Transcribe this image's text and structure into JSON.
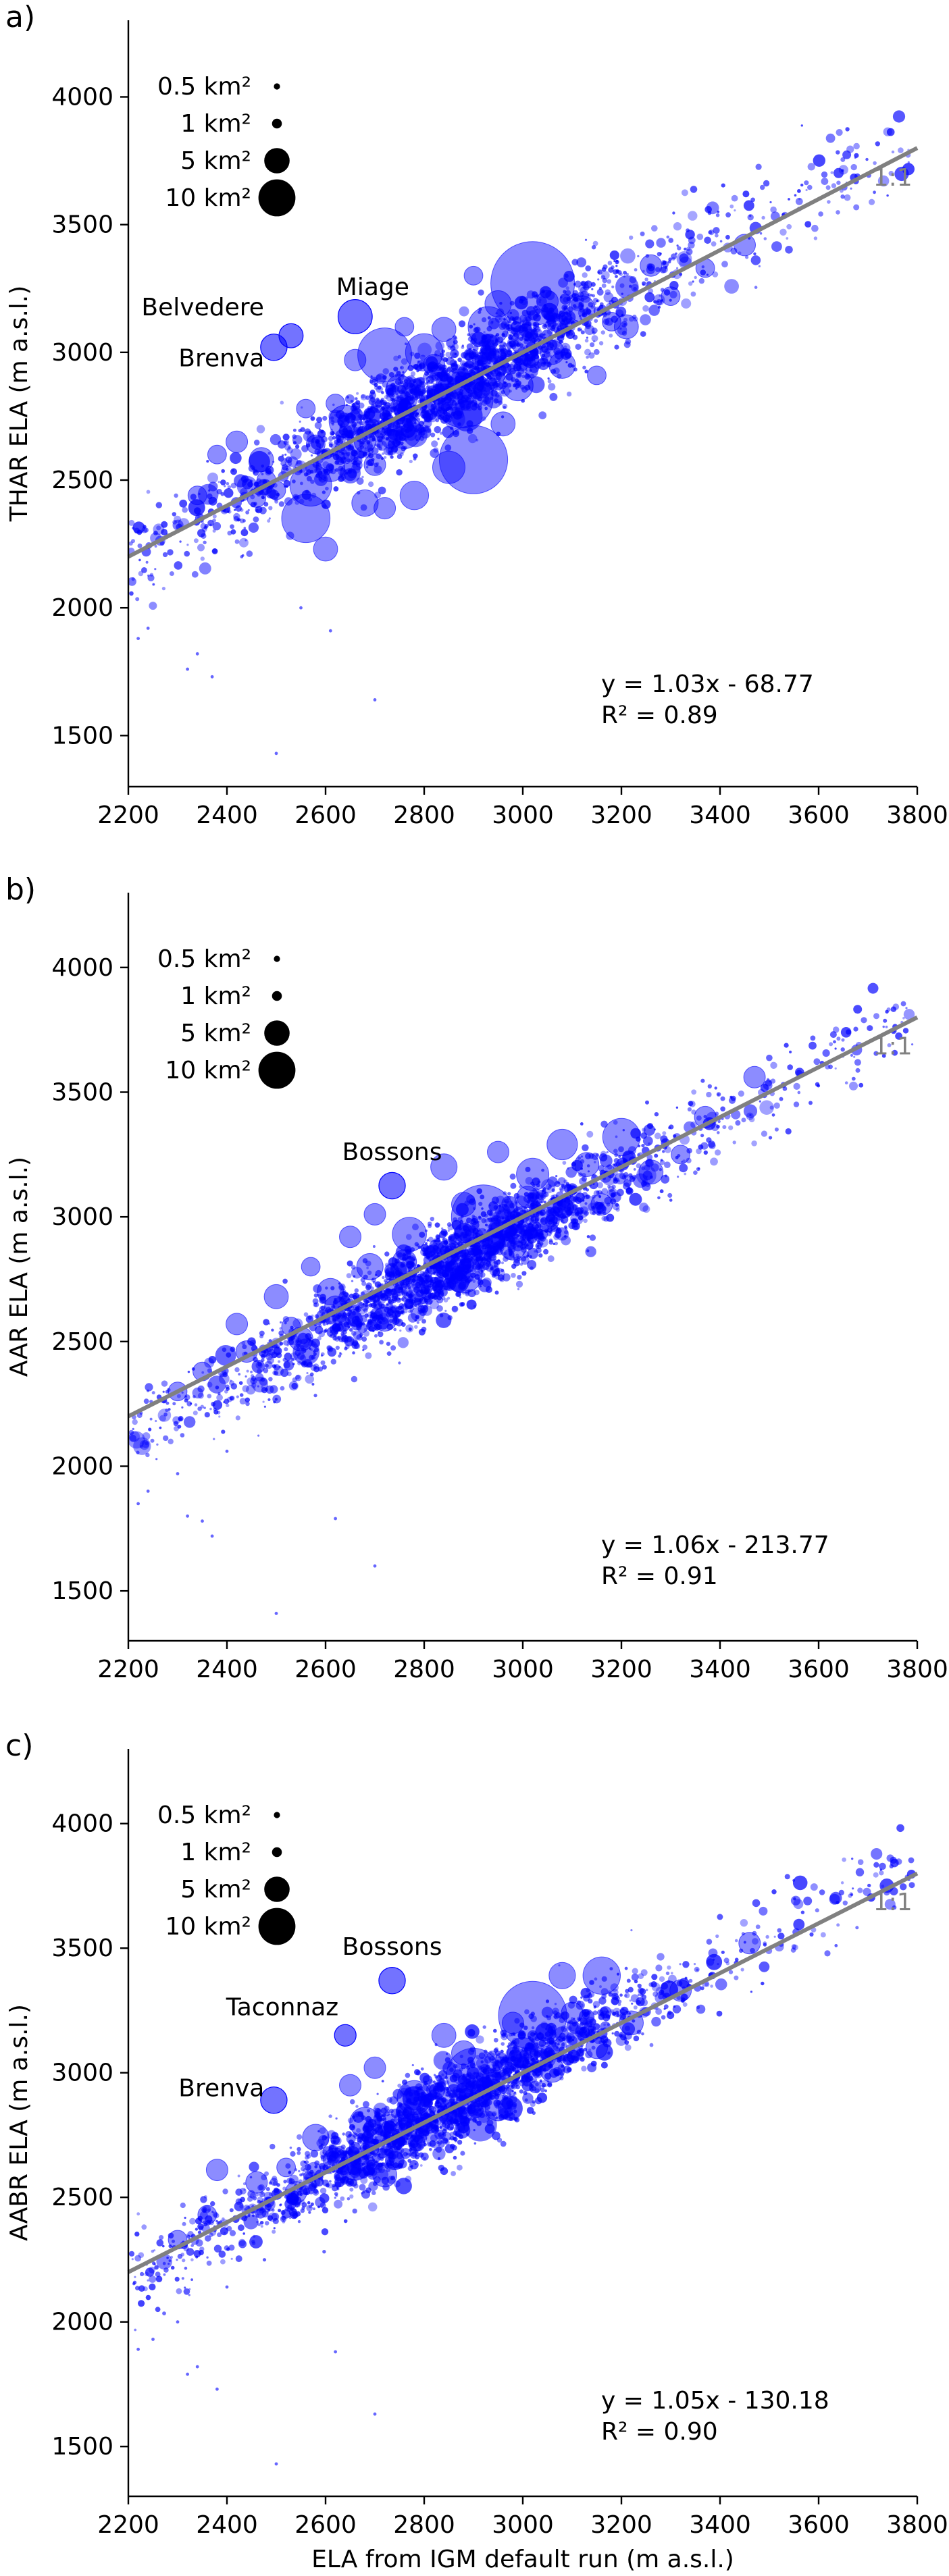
{
  "colors": {
    "points": "#0000ff",
    "one_to_one": "#808080",
    "axis": "#000000"
  },
  "chart_data": [
    {
      "type": "scatter",
      "panel_label": "a)",
      "xlabel": "",
      "ylabel": "THAR ELA (m a.s.l.)",
      "xlim": [
        2200,
        3800
      ],
      "ylim": [
        1300,
        4300
      ],
      "xticks": [
        "2200",
        "2400",
        "2600",
        "2800",
        "3000",
        "3200",
        "3400",
        "3600",
        "3800"
      ],
      "yticks": [
        "1500",
        "2000",
        "2500",
        "3000",
        "3500",
        "4000"
      ],
      "one_to_one_label": "1:1",
      "equation": "y = 1.03x - 68.77",
      "r2": "R² = 0.89",
      "legend": [
        {
          "label": "0.5 km²",
          "area_km2": 0.5
        },
        {
          "label": "1 km²",
          "area_km2": 1
        },
        {
          "label": "5 km²",
          "area_km2": 5
        },
        {
          "label": "10 km²",
          "area_km2": 10
        }
      ],
      "named_glaciers": [
        {
          "name": "Miage",
          "x": 2660,
          "y": 3140,
          "area_km2": 10
        },
        {
          "name": "Belvedere",
          "x": 2530,
          "y": 3065,
          "area_km2": 5
        },
        {
          "name": "Brenva",
          "x": 2495,
          "y": 3020,
          "area_km2": 6
        }
      ],
      "points": [
        [
          3020,
          3270,
          60
        ],
        [
          2900,
          2580,
          40
        ],
        [
          2880,
          2820,
          30
        ],
        [
          2720,
          2990,
          25
        ],
        [
          2560,
          2350,
          20
        ],
        [
          2570,
          2480,
          15
        ],
        [
          2800,
          3000,
          12
        ],
        [
          2760,
          2690,
          10
        ],
        [
          2930,
          3100,
          14
        ],
        [
          2640,
          2730,
          9
        ],
        [
          2990,
          2870,
          8
        ],
        [
          3120,
          3170,
          6
        ],
        [
          2610,
          2550,
          7
        ],
        [
          3210,
          3100,
          5
        ],
        [
          2850,
          2550,
          9
        ],
        [
          2680,
          2410,
          6
        ],
        [
          2470,
          2580,
          5
        ],
        [
          3060,
          3000,
          5
        ],
        [
          2950,
          3190,
          6
        ],
        [
          2780,
          2440,
          7
        ],
        [
          3450,
          3420,
          4
        ],
        [
          3260,
          3340,
          4
        ],
        [
          2420,
          2650,
          4
        ],
        [
          2660,
          2970,
          4
        ],
        [
          3080,
          2950,
          6
        ],
        [
          2600,
          2230,
          5
        ],
        [
          3370,
          3330,
          3
        ],
        [
          2750,
          2860,
          6
        ],
        [
          2480,
          2500,
          3
        ],
        [
          2720,
          2390,
          4
        ],
        [
          2380,
          2600,
          3
        ],
        [
          3150,
          2910,
          3
        ],
        [
          2900,
          3300,
          3
        ],
        [
          2500,
          2460,
          3
        ],
        [
          2960,
          2720,
          5
        ],
        [
          2840,
          3090,
          5
        ],
        [
          2700,
          2560,
          4
        ],
        [
          3050,
          3200,
          4
        ],
        [
          2620,
          2800,
          3
        ],
        [
          2560,
          2780,
          3
        ],
        [
          2460,
          2430,
          3
        ],
        [
          3300,
          3220,
          3
        ],
        [
          2340,
          2440,
          3
        ],
        [
          2760,
          3100,
          3
        ],
        [
          2820,
          2950,
          4
        ],
        [
          3000,
          3040,
          5
        ],
        [
          2680,
          2650,
          4
        ],
        [
          3180,
          3120,
          3
        ],
        [
          2900,
          2880,
          4
        ],
        [
          2580,
          2640,
          3
        ]
      ],
      "outliers": [
        [
          2220,
          1880
        ],
        [
          2240,
          1920
        ],
        [
          2320,
          1760
        ],
        [
          2340,
          1820
        ],
        [
          2370,
          1730
        ],
        [
          2500,
          1430
        ],
        [
          2610,
          1910
        ],
        [
          2700,
          1640
        ],
        [
          2550,
          2000
        ],
        [
          2430,
          2200
        ]
      ],
      "cloud": {
        "seed": 11,
        "count": 2300,
        "slope": 1.03,
        "intercept": -68.77,
        "sd": 95
      }
    },
    {
      "type": "scatter",
      "panel_label": "b)",
      "xlabel": "",
      "ylabel": "AAR ELA (m a.s.l.)",
      "xlim": [
        2200,
        3800
      ],
      "ylim": [
        1300,
        4300
      ],
      "xticks": [
        "2200",
        "2400",
        "2600",
        "2800",
        "3000",
        "3200",
        "3400",
        "3600",
        "3800"
      ],
      "yticks": [
        "1500",
        "2000",
        "2500",
        "3000",
        "3500",
        "4000"
      ],
      "one_to_one_label": "1:1",
      "equation": "y = 1.06x - 213.77",
      "r2": "R² = 0.91",
      "legend": [
        {
          "label": "0.5 km²",
          "area_km2": 0.5
        },
        {
          "label": "1 km²",
          "area_km2": 1
        },
        {
          "label": "5 km²",
          "area_km2": 5
        },
        {
          "label": "10 km²",
          "area_km2": 10
        }
      ],
      "named_glaciers": [
        {
          "name": "Bossons",
          "x": 2735,
          "y": 3125,
          "area_km2": 6
        }
      ],
      "points": [
        [
          2920,
          3000,
          35
        ],
        [
          3200,
          3320,
          12
        ],
        [
          3080,
          3290,
          8
        ],
        [
          2880,
          2770,
          12
        ],
        [
          2770,
          2930,
          10
        ],
        [
          3020,
          3170,
          9
        ],
        [
          2840,
          3200,
          6
        ],
        [
          2690,
          2800,
          6
        ],
        [
          2610,
          2700,
          6
        ],
        [
          2500,
          2680,
          5
        ],
        [
          2440,
          2460,
          4
        ],
        [
          2550,
          2510,
          5
        ],
        [
          3130,
          3210,
          5
        ],
        [
          3260,
          3180,
          5
        ],
        [
          2980,
          2880,
          6
        ],
        [
          3370,
          3400,
          4
        ],
        [
          3470,
          3560,
          4
        ],
        [
          2420,
          2570,
          4
        ],
        [
          2650,
          2920,
          4
        ],
        [
          2720,
          2590,
          5
        ],
        [
          2880,
          3050,
          5
        ],
        [
          3050,
          2990,
          5
        ],
        [
          2780,
          2710,
          6
        ],
        [
          2620,
          2640,
          4
        ],
        [
          2350,
          2380,
          3
        ],
        [
          2570,
          2800,
          3
        ],
        [
          3160,
          3050,
          4
        ],
        [
          2300,
          2300,
          3
        ],
        [
          3320,
          3250,
          3
        ],
        [
          2850,
          2860,
          5
        ],
        [
          2700,
          3010,
          4
        ],
        [
          2950,
          3260,
          4
        ],
        [
          2530,
          2560,
          3
        ],
        [
          3010,
          3080,
          4
        ],
        [
          2760,
          2820,
          5
        ]
      ],
      "outliers": [
        [
          2220,
          1850
        ],
        [
          2240,
          1900
        ],
        [
          2320,
          1800
        ],
        [
          2350,
          1780
        ],
        [
          2370,
          1720
        ],
        [
          2500,
          1410
        ],
        [
          2620,
          1790
        ],
        [
          2700,
          1600
        ],
        [
          2300,
          1970
        ],
        [
          2400,
          2060
        ]
      ],
      "cloud": {
        "seed": 23,
        "count": 2300,
        "slope": 1.06,
        "intercept": -213.77,
        "sd": 85
      }
    },
    {
      "type": "scatter",
      "panel_label": "c)",
      "xlabel": "ELA from IGM default run (m a.s.l.)",
      "ylabel": "AABR ELA (m a.s.l.)",
      "xlim": [
        2200,
        3800
      ],
      "ylim": [
        1300,
        4300
      ],
      "xticks": [
        "2200",
        "2400",
        "2600",
        "2800",
        "3000",
        "3200",
        "3400",
        "3600",
        "3800"
      ],
      "yticks": [
        "1500",
        "2000",
        "2500",
        "3000",
        "3500",
        "4000"
      ],
      "one_to_one_label": "1:1",
      "equation": "y = 1.05x - 130.18",
      "r2": "R² = 0.90",
      "legend": [
        {
          "label": "0.5 km²",
          "area_km2": 0.5
        },
        {
          "label": "1 km²",
          "area_km2": 1
        },
        {
          "label": "5 km²",
          "area_km2": 5
        },
        {
          "label": "10 km²",
          "area_km2": 10
        }
      ],
      "named_glaciers": [
        {
          "name": "Bossons",
          "x": 2735,
          "y": 3370,
          "area_km2": 6
        },
        {
          "name": "Taconnaz",
          "x": 2640,
          "y": 3150,
          "area_km2": 4
        },
        {
          "name": "Brenva",
          "x": 2495,
          "y": 2890,
          "area_km2": 6
        }
      ],
      "points": [
        [
          3020,
          3230,
          40
        ],
        [
          2900,
          2990,
          25
        ],
        [
          3160,
          3390,
          12
        ],
        [
          2780,
          2900,
          10
        ],
        [
          3080,
          3390,
          6
        ],
        [
          2680,
          2800,
          8
        ],
        [
          2580,
          2740,
          6
        ],
        [
          3000,
          3080,
          8
        ],
        [
          3220,
          3200,
          5
        ],
        [
          2840,
          3150,
          5
        ],
        [
          2460,
          2560,
          4
        ],
        [
          2380,
          2610,
          4
        ],
        [
          2620,
          2650,
          5
        ],
        [
          2950,
          2860,
          6
        ],
        [
          3320,
          3330,
          4
        ],
        [
          3460,
          3520,
          4
        ],
        [
          2540,
          2520,
          4
        ],
        [
          2720,
          2590,
          5
        ],
        [
          2880,
          3080,
          5
        ],
        [
          3060,
          3010,
          5
        ],
        [
          2360,
          2430,
          3
        ],
        [
          2650,
          2950,
          4
        ],
        [
          3150,
          3100,
          4
        ],
        [
          2300,
          2330,
          3
        ],
        [
          2800,
          2810,
          5
        ],
        [
          2700,
          3020,
          4
        ],
        [
          2980,
          3200,
          4
        ],
        [
          2520,
          2620,
          3
        ],
        [
          3100,
          3240,
          4
        ],
        [
          2760,
          2760,
          5
        ]
      ],
      "outliers": [
        [
          2220,
          1890
        ],
        [
          2250,
          1930
        ],
        [
          2320,
          1790
        ],
        [
          2340,
          1820
        ],
        [
          2380,
          1730
        ],
        [
          2500,
          1430
        ],
        [
          2620,
          1880
        ],
        [
          2700,
          1630
        ],
        [
          2300,
          2000
        ],
        [
          2400,
          2140
        ]
      ],
      "cloud": {
        "seed": 37,
        "count": 2300,
        "slope": 1.05,
        "intercept": -130.18,
        "sd": 85
      }
    }
  ]
}
